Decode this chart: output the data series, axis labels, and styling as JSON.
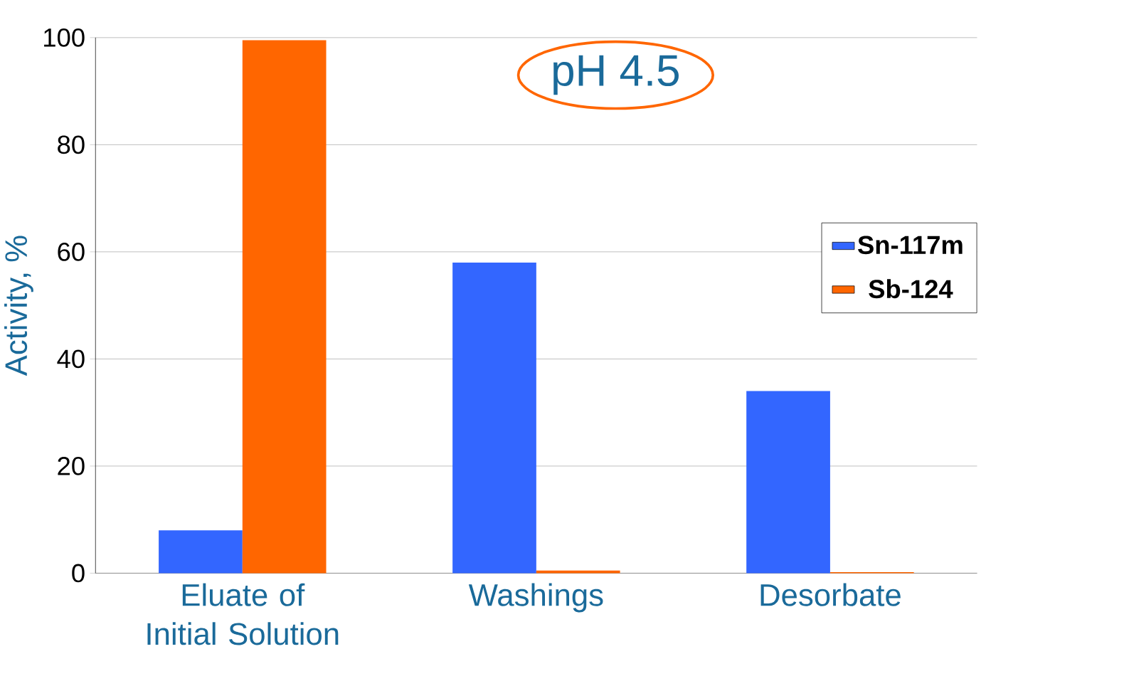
{
  "chart_data": {
    "type": "bar",
    "categories": [
      "Eluate of Initial Solution",
      "Washings",
      "Desorbate"
    ],
    "series": [
      {
        "name": "Sn-117m",
        "color": "#3366ff",
        "values": [
          8,
          58,
          34
        ]
      },
      {
        "name": "Sb-124",
        "color": "#ff6600",
        "values": [
          99.5,
          0.5,
          0.2
        ]
      }
    ],
    "ylabel": "Activity, %",
    "annotations": [
      "pH 4.5"
    ],
    "ylim": [
      0,
      100
    ],
    "yticks": [
      0,
      20,
      40,
      60,
      80,
      100
    ],
    "grid": "y",
    "legend": "right"
  }
}
